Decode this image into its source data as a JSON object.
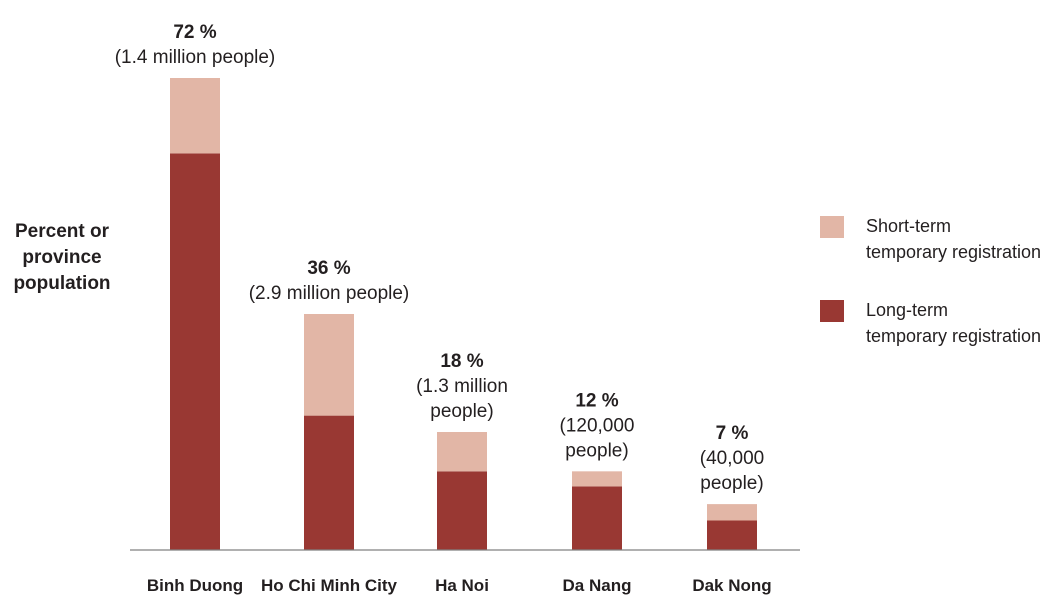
{
  "chart_data": {
    "type": "bar",
    "stacked": true,
    "ylabel_lines": [
      "Percent or",
      "province",
      "population"
    ],
    "categories": [
      "Binh Duong",
      "Ho Chi Minh City",
      "Ha Noi",
      "Da Nang",
      "Dak Nong"
    ],
    "series": [
      {
        "name_lines": [
          "Long-term",
          "temporary registration"
        ],
        "color": "#993833",
        "values": [
          60.5,
          20.5,
          12,
          9.7,
          4.5
        ]
      },
      {
        "name_lines": [
          "Short-term",
          "temporary registration"
        ],
        "color": "#e2b6a6",
        "values": [
          11.5,
          15.5,
          6,
          2.3,
          2.5
        ]
      }
    ],
    "totals": [
      72,
      36,
      18,
      12,
      7
    ],
    "bar_labels": [
      {
        "pct": "72 %",
        "people_lines": [
          "(1.4 million people)"
        ]
      },
      {
        "pct": "36 %",
        "people_lines": [
          "(2.9 million people)"
        ]
      },
      {
        "pct": "18 %",
        "people_lines": [
          "(1.3 million",
          "people)"
        ]
      },
      {
        "pct": "12 %",
        "people_lines": [
          "(120,000",
          "people)"
        ]
      },
      {
        "pct": "7 %",
        "people_lines": [
          "(40,000",
          "people)"
        ]
      }
    ],
    "ylim": [
      0,
      72
    ],
    "grid": false,
    "legend_position": "right"
  }
}
